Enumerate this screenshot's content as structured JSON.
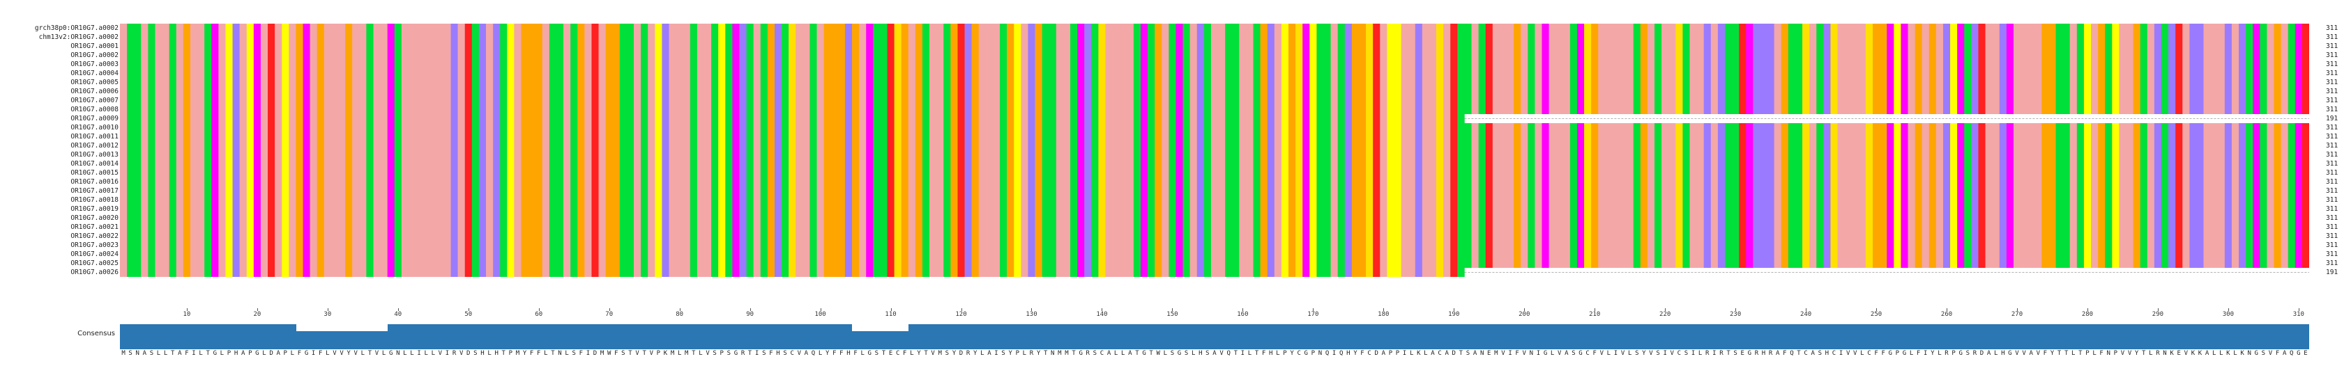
{
  "consensus_label": "Consensus",
  "consensus": "MSNASLLTAFILTGLPHAPGLDAPLFGIFLVVYVLTVLGNLLILLVIRVDSHLHTPMYFFLTNLSFIDMWFSTVTVPKMLMTLVSPSGRTISFHSCVAQLYFFHFLGSTECFLYTVMSYDRYLAISYPLRYTNMMTGRSCALLATGTWLSGSLHSAVQTILTFHLPYCGPNQIQHYFCDAPPILKLACADTSANEMVIFVNIGLVASGCFVLIVLSYVSIVCSILRIRTSEGRHRAFQTCASHCIVVLCFFGPGLFIYLRPGSRDALHGVVAVFYTTLTPLFNPVVYTLRNKEVKKALLKLKNGSVFAQGE",
  "rows": [
    {
      "name": "grch38p0:OR10G7.a0002",
      "count": "311",
      "gap": ""
    },
    {
      "name": "chm13v2:OR10G7.a0002",
      "count": "311",
      "gap": ""
    },
    {
      "name": "OR10G7.a0001",
      "count": "311",
      "gap": ""
    },
    {
      "name": "OR10G7.a0002",
      "count": "311",
      "gap": ""
    },
    {
      "name": "OR10G7.a0003",
      "count": "311",
      "gap": ""
    },
    {
      "name": "OR10G7.a0004",
      "count": "311",
      "gap": ""
    },
    {
      "name": "OR10G7.a0005",
      "count": "311",
      "gap": ""
    },
    {
      "name": "OR10G7.a0006",
      "count": "311",
      "gap": ""
    },
    {
      "name": "OR10G7.a0007",
      "count": "311",
      "gap": ""
    },
    {
      "name": "OR10G7.a0008",
      "count": "311",
      "gap": ""
    },
    {
      "name": "OR10G7.a0009",
      "count": "191",
      "gap": "tail"
    },
    {
      "name": "OR10G7.a0010",
      "count": "311",
      "gap": ""
    },
    {
      "name": "OR10G7.a0011",
      "count": "311",
      "gap": ""
    },
    {
      "name": "OR10G7.a0012",
      "count": "311",
      "gap": ""
    },
    {
      "name": "OR10G7.a0013",
      "count": "311",
      "gap": ""
    },
    {
      "name": "OR10G7.a0014",
      "count": "311",
      "gap": ""
    },
    {
      "name": "OR10G7.a0015",
      "count": "311",
      "gap": ""
    },
    {
      "name": "OR10G7.a0016",
      "count": "311",
      "gap": ""
    },
    {
      "name": "OR10G7.a0017",
      "count": "311",
      "gap": ""
    },
    {
      "name": "OR10G7.a0018",
      "count": "311",
      "gap": ""
    },
    {
      "name": "OR10G7.a0019",
      "count": "311",
      "gap": ""
    },
    {
      "name": "OR10G7.a0020",
      "count": "311",
      "gap": ""
    },
    {
      "name": "OR10G7.a0021",
      "count": "311",
      "gap": ""
    },
    {
      "name": "OR10G7.a0022",
      "count": "311",
      "gap": ""
    },
    {
      "name": "OR10G7.a0023",
      "count": "311",
      "gap": ""
    },
    {
      "name": "OR10G7.a0024",
      "count": "311",
      "gap": ""
    },
    {
      "name": "OR10G7.a0025",
      "count": "311",
      "gap": ""
    },
    {
      "name": "OR10G7.a0026",
      "count": "191",
      "gap": "tail"
    }
  ],
  "ticks": [
    10,
    20,
    30,
    40,
    50,
    60,
    70,
    80,
    90,
    100,
    110,
    120,
    130,
    140,
    150,
    160,
    170,
    180,
    190,
    200,
    210,
    220,
    230,
    240,
    250,
    260,
    270,
    280,
    290,
    300,
    310
  ],
  "colors": {
    "A": "#f4a7a7",
    "V": "#f4a7a7",
    "L": "#f4a7a7",
    "I": "#f4a7a7",
    "M": "#f4a7a7",
    "F": "#ffa500",
    "W": "#ffa500",
    "Y": "#ffa500",
    "S": "#00e03a",
    "T": "#00e03a",
    "N": "#00e03a",
    "Q": "#00e03a",
    "D": "#ff2020",
    "E": "#ff2020",
    "K": "#9a7bff",
    "R": "#9a7bff",
    "H": "#9a7bff",
    "G": "#ff00ff",
    "P": "#ffff00",
    "C": "#ffe000"
  },
  "consensus_bar_color": "#2a77b3"
}
